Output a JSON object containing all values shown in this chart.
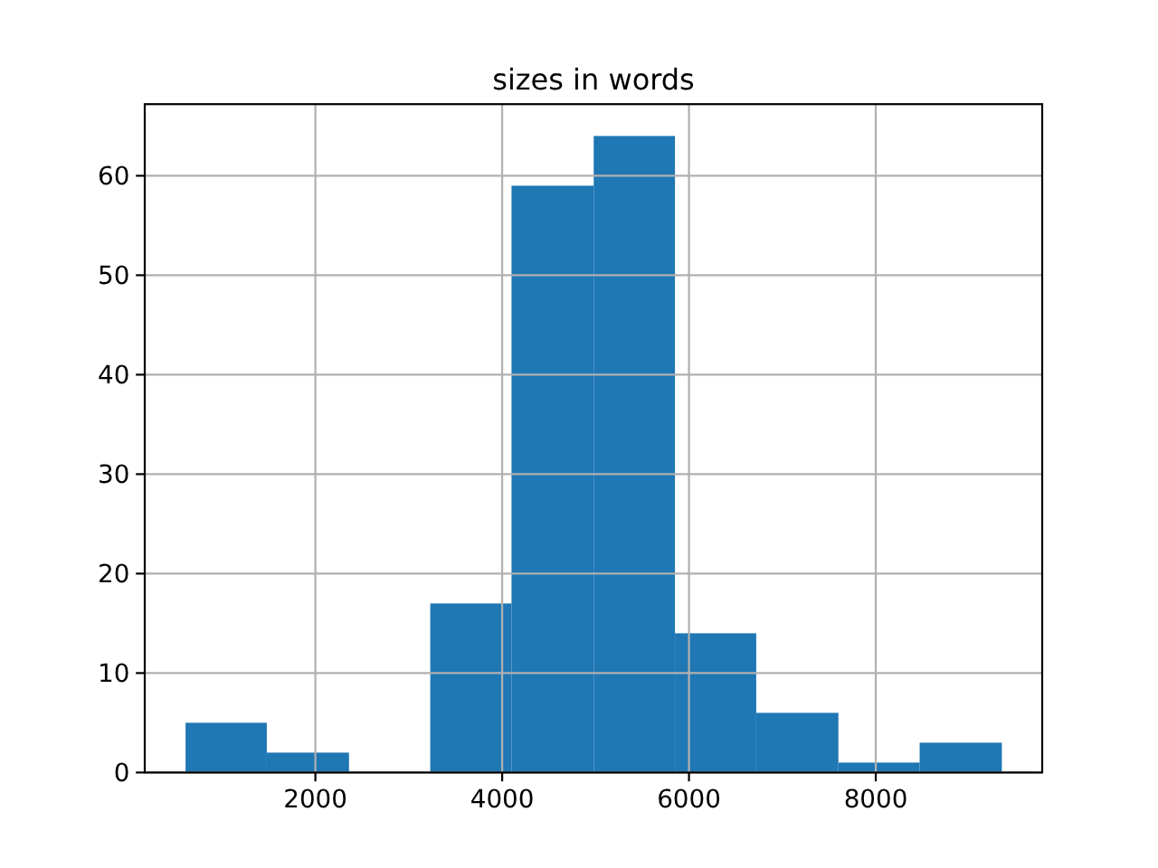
{
  "chart_data": {
    "type": "histogram",
    "title": "sizes in words",
    "bins": [
      610,
      1480,
      2360,
      3230,
      4100,
      4980,
      5850,
      6720,
      7600,
      8470,
      9350
    ],
    "values": [
      5,
      2,
      0,
      17,
      59,
      64,
      14,
      6,
      1,
      3
    ],
    "color": "#1f77b4",
    "xlim": [
      173,
      9782
    ],
    "xticks": [
      2000,
      4000,
      6000,
      8000
    ],
    "ylim": [
      0,
      67.2
    ],
    "yticks": [
      0,
      10,
      20,
      30,
      40,
      50,
      60
    ],
    "grid": true
  }
}
